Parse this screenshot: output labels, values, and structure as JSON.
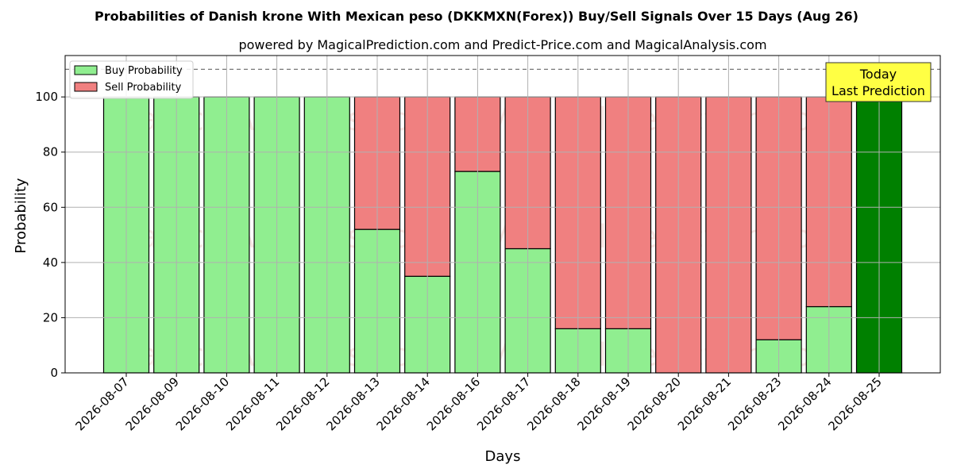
{
  "chart_data": {
    "type": "bar",
    "stacked": true,
    "title": "Probabilities of Danish krone With Mexican peso (DKKMXN(Forex)) Buy/Sell Signals Over 15 Days (Aug 26)",
    "subtitle": "powered by MagicalPrediction.com and Predict-Price.com and MagicalAnalysis.com",
    "xlabel": "Days",
    "ylabel": "Probability",
    "ylim": [
      0,
      115
    ],
    "yticks": [
      0,
      20,
      40,
      60,
      80,
      100
    ],
    "grid": true,
    "legend_position": "top-left",
    "reference_line": 110,
    "categories": [
      "2026-08-07",
      "2026-08-09",
      "2026-08-10",
      "2026-08-11",
      "2026-08-12",
      "2026-08-13",
      "2026-08-14",
      "2026-08-16",
      "2026-08-17",
      "2026-08-18",
      "2026-08-19",
      "2026-08-20",
      "2026-08-21",
      "2026-08-23",
      "2026-08-24",
      "2026-08-25"
    ],
    "series": [
      {
        "name": "Buy Probability",
        "color": "#90ee90",
        "values": [
          100,
          100,
          100,
          100,
          100,
          52,
          35,
          73,
          45,
          16,
          16,
          0,
          0,
          12,
          24,
          100
        ]
      },
      {
        "name": "Sell Probability",
        "color": "#f08080",
        "values": [
          0,
          0,
          0,
          0,
          0,
          48,
          65,
          27,
          55,
          84,
          84,
          100,
          100,
          88,
          76,
          0
        ]
      }
    ],
    "highlight": {
      "index": 15,
      "color": "#008000"
    },
    "annotation": {
      "line1": "Today",
      "line2": "Last Prediction",
      "background": "#ffff44"
    },
    "watermarks": [
      "MagicalAnalysis.com",
      "MagicalPrediction.com"
    ]
  }
}
